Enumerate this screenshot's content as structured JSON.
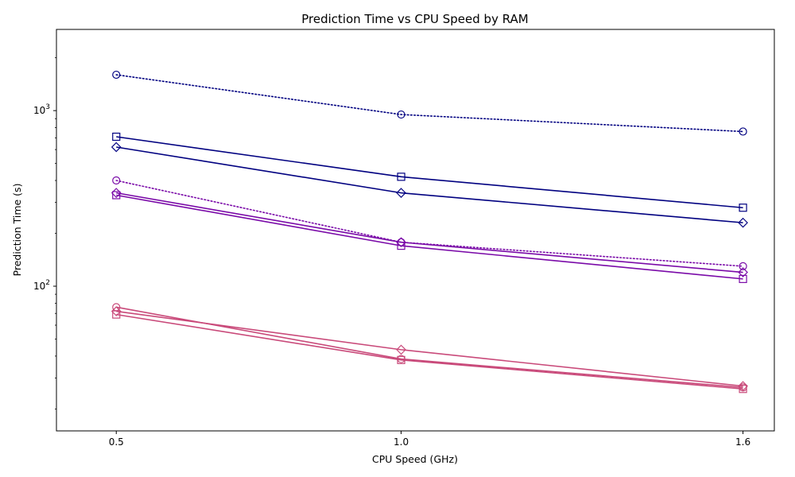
{
  "chart_data": {
    "type": "line",
    "title": "Prediction Time vs CPU Speed by RAM",
    "xlabel": "CPU Speed (GHz)",
    "ylabel": "Prediction Time (s)",
    "y_scale": "log",
    "ylim": [
      15,
      2900
    ],
    "xlim": [
      0.395,
      1.655
    ],
    "x": [
      0.5,
      1.0,
      1.6
    ],
    "x_tick_labels": [
      "0.5",
      "1.0",
      "1.6"
    ],
    "y_tick_labels": [
      {
        "value": 100,
        "base": "10",
        "exp": "2"
      },
      {
        "value": 1000,
        "base": "10",
        "exp": "3"
      }
    ],
    "grid": false,
    "series": [
      {
        "color": "#000080",
        "style": "dotted",
        "marker": "circle",
        "values": [
          1600,
          950,
          760
        ]
      },
      {
        "color": "#000080",
        "style": "solid",
        "marker": "square",
        "values": [
          710,
          420,
          280
        ]
      },
      {
        "color": "#000080",
        "style": "solid",
        "marker": "diamond",
        "values": [
          620,
          340,
          230
        ]
      },
      {
        "color": "#7a0aa8",
        "style": "dotted",
        "marker": "circle",
        "values": [
          400,
          178,
          130
        ]
      },
      {
        "color": "#7a0aa8",
        "style": "solid",
        "marker": "diamond",
        "values": [
          340,
          178,
          120
        ]
      },
      {
        "color": "#7a0aa8",
        "style": "solid",
        "marker": "square",
        "values": [
          330,
          170,
          110
        ]
      },
      {
        "color": "#c94a7a",
        "style": "solid",
        "marker": "circle",
        "values": [
          76,
          38.5,
          26.5
        ]
      },
      {
        "color": "#c94a7a",
        "style": "solid",
        "marker": "diamond",
        "values": [
          72,
          43.5,
          27
        ]
      },
      {
        "color": "#c94a7a",
        "style": "solid",
        "marker": "square",
        "values": [
          69,
          38,
          26
        ]
      }
    ]
  }
}
